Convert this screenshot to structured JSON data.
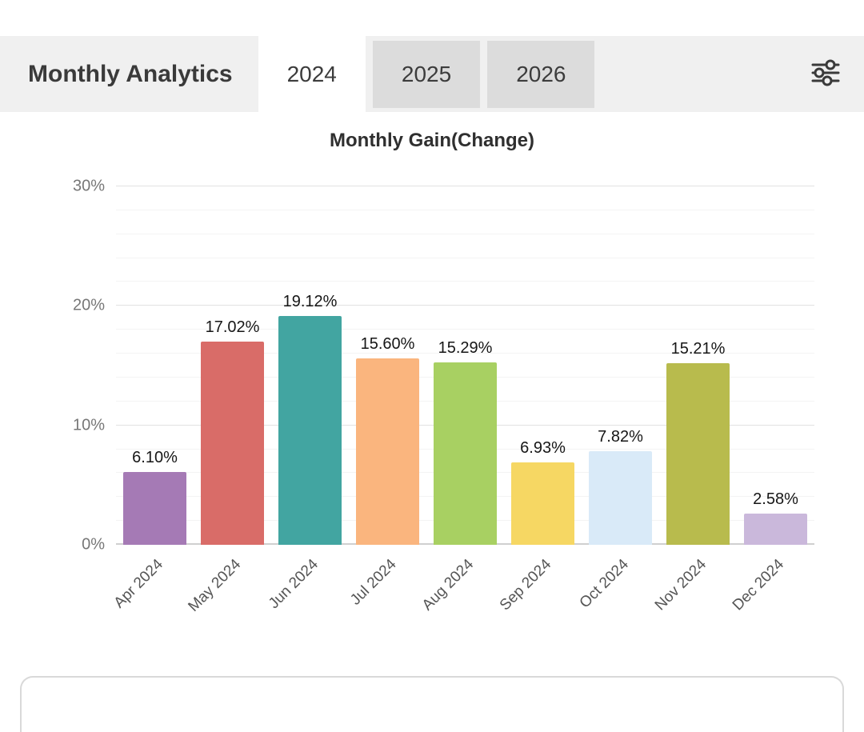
{
  "header": {
    "title": "Monthly Analytics",
    "tabs": [
      {
        "label": "2024",
        "active": true
      },
      {
        "label": "2025",
        "active": false
      },
      {
        "label": "2026",
        "active": false
      }
    ],
    "filter_icon": "tune-sliders-icon"
  },
  "chart_data": {
    "type": "bar",
    "title": "Monthly Gain(Change)",
    "categories": [
      "Apr 2024",
      "May 2024",
      "Jun 2024",
      "Jul 2024",
      "Aug 2024",
      "Sep 2024",
      "Oct 2024",
      "Nov 2024",
      "Dec 2024"
    ],
    "values": [
      6.1,
      17.02,
      19.12,
      15.6,
      15.29,
      6.93,
      7.82,
      15.21,
      2.58
    ],
    "value_labels": [
      "6.10%",
      "17.02%",
      "19.12%",
      "15.60%",
      "15.29%",
      "6.93%",
      "7.82%",
      "15.21%",
      "2.58%"
    ],
    "bar_colors": [
      "#a57ab5",
      "#d96c68",
      "#42a5a1",
      "#fab57e",
      "#a8d062",
      "#f6d763",
      "#d9eaf8",
      "#b8bb4d",
      "#cab8db"
    ],
    "xlabel": "",
    "ylabel": "",
    "ylim": [
      0,
      30
    ],
    "major_step": 10,
    "minor_step": 2,
    "y_tick_values": [
      0,
      10,
      20,
      30
    ],
    "y_tick_labels": [
      "0%",
      "10%",
      "20%",
      "30%"
    ],
    "grid": true,
    "legend": false
  }
}
